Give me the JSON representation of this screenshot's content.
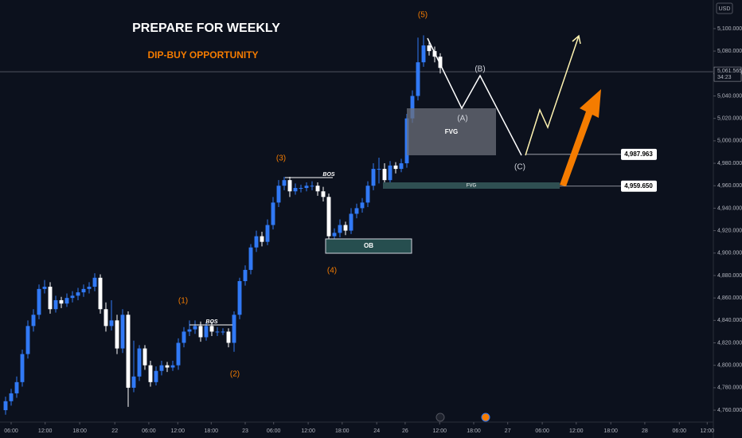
{
  "chart_data": {
    "type": "candlestick",
    "title": "PREPARE FOR WEEKLY",
    "subtitle": "DIP-BUY OPPORTUNITY",
    "currency": "USD",
    "up_color": "#3179f5",
    "down_color": "#ffffff",
    "x": [
      1,
      2,
      3,
      4,
      5,
      6,
      7,
      8,
      9,
      10,
      11,
      12,
      13,
      14,
      15,
      16,
      17,
      18,
      19,
      20,
      21,
      22,
      23,
      24,
      25,
      26,
      27,
      28,
      29,
      30,
      31,
      32,
      33,
      34,
      35,
      36,
      37,
      38,
      39,
      40,
      41,
      42,
      43,
      44,
      45,
      46,
      47,
      48,
      49,
      50,
      51,
      52,
      53,
      54,
      55,
      56,
      57,
      58,
      59,
      60,
      61,
      62,
      63,
      64,
      65,
      66,
      67,
      68,
      69,
      70,
      71,
      72,
      73,
      74,
      75,
      76,
      77,
      78,
      79
    ],
    "open": [
      4760,
      4768,
      4775,
      4785,
      4810,
      4835,
      4845,
      4868,
      4870,
      4850,
      4858,
      4855,
      4860,
      4862,
      4865,
      4868,
      4870,
      4878,
      4850,
      4835,
      4840,
      4815,
      4845,
      4780,
      4790,
      4815,
      4800,
      4785,
      4795,
      4800,
      4798,
      4800,
      4820,
      4830,
      4832,
      4835,
      4825,
      4835,
      4830,
      4830,
      4830,
      4820,
      4845,
      4875,
      4885,
      4905,
      4915,
      4910,
      4925,
      4945,
      4960,
      4965,
      4955,
      4958,
      4958,
      4960,
      4960,
      4955,
      4950,
      4915,
      4918,
      4925,
      4920,
      4935,
      4940,
      4945,
      4960,
      4975,
      4975,
      4965,
      4978,
      4975,
      4980,
      5020,
      5040,
      5070,
      5085,
      5080,
      5075
    ],
    "high": [
      4772,
      4779,
      4790,
      4814,
      4840,
      4850,
      4872,
      4876,
      4874,
      4862,
      4861,
      4864,
      4866,
      4869,
      4872,
      4874,
      4882,
      4881,
      4856,
      4858,
      4845,
      4850,
      4848,
      4822,
      4818,
      4818,
      4804,
      4799,
      4804,
      4803,
      4804,
      4824,
      4834,
      4840,
      4840,
      4839,
      4838,
      4839,
      4834,
      4833,
      4833,
      4848,
      4878,
      4889,
      4908,
      4920,
      4919,
      4930,
      4950,
      4965,
      4968,
      4968,
      4962,
      4961,
      4963,
      4964,
      4963,
      4959,
      4953,
      4922,
      4930,
      4928,
      4940,
      4944,
      4949,
      4964,
      4980,
      4985,
      4980,
      4982,
      4981,
      4984,
      5024,
      5045,
      5092,
      5094,
      5089,
      5084,
      5078
    ],
    "low": [
      4756,
      4764,
      4771,
      4781,
      4806,
      4830,
      4841,
      4864,
      4846,
      4847,
      4851,
      4852,
      4856,
      4858,
      4861,
      4864,
      4866,
      4846,
      4830,
      4831,
      4810,
      4811,
      4763,
      4776,
      4786,
      4796,
      4781,
      4782,
      4791,
      4794,
      4795,
      4796,
      4816,
      4826,
      4828,
      4821,
      4822,
      4826,
      4826,
      4827,
      4816,
      4812,
      4841,
      4871,
      4881,
      4901,
      4906,
      4907,
      4921,
      4941,
      4956,
      4950,
      4952,
      4954,
      4955,
      4956,
      4951,
      4946,
      4911,
      4912,
      4914,
      4916,
      4917,
      4931,
      4936,
      4941,
      4956,
      4962,
      4961,
      4962,
      4971,
      4972,
      4976,
      5016,
      5036,
      5066,
      5076,
      5070,
      5060
    ],
    "close": [
      4768,
      4775,
      4785,
      4810,
      4835,
      4845,
      4868,
      4870,
      4850,
      4858,
      4855,
      4860,
      4862,
      4865,
      4868,
      4870,
      4878,
      4850,
      4835,
      4840,
      4815,
      4845,
      4780,
      4790,
      4815,
      4800,
      4785,
      4795,
      4800,
      4798,
      4800,
      4820,
      4830,
      4832,
      4835,
      4825,
      4835,
      4830,
      4830,
      4830,
      4820,
      4845,
      4875,
      4885,
      4905,
      4915,
      4910,
      4925,
      4945,
      4960,
      4965,
      4955,
      4958,
      4958,
      4960,
      4960,
      4955,
      4950,
      4915,
      4918,
      4925,
      4920,
      4935,
      4940,
      4945,
      4960,
      4975,
      4975,
      4965,
      4978,
      4975,
      4980,
      5020,
      5040,
      5070,
      5085,
      5080,
      5075,
      5065
    ],
    "xlim": [
      0,
      128
    ],
    "xticks": [
      {
        "value": 2,
        "label": "06:00"
      },
      {
        "value": 8.1,
        "label": "12:00"
      },
      {
        "value": 14.3,
        "label": "18:00"
      },
      {
        "value": 20.6,
        "label": "22"
      },
      {
        "value": 26.7,
        "label": "06:00"
      },
      {
        "value": 31.9,
        "label": "12:00"
      },
      {
        "value": 37.9,
        "label": "18:00"
      },
      {
        "value": 44,
        "label": "23"
      },
      {
        "value": 49.1,
        "label": "06:00"
      },
      {
        "value": 55.3,
        "label": "12:00"
      },
      {
        "value": 61.4,
        "label": "18:00"
      },
      {
        "value": 67.6,
        "label": "24"
      },
      {
        "value": 72.7,
        "label": "26"
      },
      {
        "value": 78.9,
        "label": "12:00"
      },
      {
        "value": 85,
        "label": "18:00"
      },
      {
        "value": 91.1,
        "label": "27"
      },
      {
        "value": 97.3,
        "label": "06:00"
      },
      {
        "value": 103.4,
        "label": "12:00"
      },
      {
        "value": 109.6,
        "label": "18:00"
      },
      {
        "value": 115.7,
        "label": "28"
      },
      {
        "value": 121.9,
        "label": "06:00"
      },
      {
        "value": 126.9,
        "label": "12:00"
      }
    ],
    "ylim": [
      4749.4,
      5125.5
    ],
    "yticks": [
      {
        "value": 4760,
        "label": "4,760.000"
      },
      {
        "value": 4780,
        "label": "4,780.000"
      },
      {
        "value": 4800,
        "label": "4,800.000"
      },
      {
        "value": 4820,
        "label": "4,820.000"
      },
      {
        "value": 4840,
        "label": "4,840.000"
      },
      {
        "value": 4860,
        "label": "4,860.000"
      },
      {
        "value": 4880,
        "label": "4,880.000"
      },
      {
        "value": 4900,
        "label": "4,900.000"
      },
      {
        "value": 4920,
        "label": "4,920.000"
      },
      {
        "value": 4940,
        "label": "4,940.000"
      },
      {
        "value": 4960,
        "label": "4,960.000"
      },
      {
        "value": 4980,
        "label": "4,980.000"
      },
      {
        "value": 5000,
        "label": "5,000.000"
      },
      {
        "value": 5020,
        "label": "5,020.000"
      },
      {
        "value": 5040,
        "label": "5,040.000"
      },
      {
        "value": 5060,
        "label": "5,060.000"
      },
      {
        "value": 5080,
        "label": "5,080.000"
      },
      {
        "value": 5100,
        "label": "5,100.000"
      }
    ],
    "last_price": {
      "value": 5061.565,
      "label": "5,061.565"
    },
    "countdown": "34:23",
    "levels": {
      "values": [
        4987.963,
        4959.65
      ],
      "value_labels": [
        "4,987.963",
        "4,959.650"
      ]
    },
    "waves": [
      "(1)",
      "(2)",
      "(3)",
      "(4)",
      "(5)",
      "(A)",
      "(B)",
      "(C)"
    ],
    "bos": [
      "BOS",
      "BOS"
    ],
    "fvg": [
      "FVG",
      "FVG"
    ],
    "ob": "OB"
  }
}
